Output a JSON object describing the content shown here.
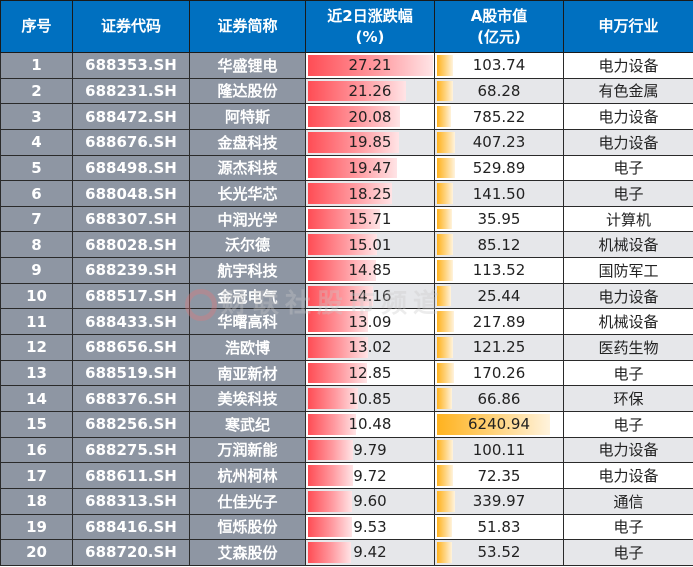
{
  "table": {
    "headers": {
      "rank": "序号",
      "code": "证券代码",
      "name": "证券简称",
      "change_line1": "近2日涨跌幅",
      "change_line2": "(%)",
      "mktcap_line1": "A股市值",
      "mktcap_line2": "(亿元)",
      "industry": "申万行业"
    },
    "colors": {
      "header_bg": "#0070c0",
      "left_cols_bg": "#8e96a3",
      "change_bar": "#ff4d55",
      "mktcap_bar": "#ffb21e"
    },
    "rows": [
      {
        "rank": "1",
        "code": "688353.SH",
        "name": "华盛锂电",
        "change": "27.21",
        "mktcap": "103.74",
        "industry": "电力设备"
      },
      {
        "rank": "2",
        "code": "688231.SH",
        "name": "隆达股份",
        "change": "21.26",
        "mktcap": "68.28",
        "industry": "有色金属"
      },
      {
        "rank": "3",
        "code": "688472.SH",
        "name": "阿特斯",
        "change": "20.08",
        "mktcap": "785.22",
        "industry": "电力设备"
      },
      {
        "rank": "4",
        "code": "688676.SH",
        "name": "金盘科技",
        "change": "19.85",
        "mktcap": "407.23",
        "industry": "电力设备"
      },
      {
        "rank": "5",
        "code": "688498.SH",
        "name": "源杰科技",
        "change": "19.47",
        "mktcap": "529.89",
        "industry": "电子"
      },
      {
        "rank": "6",
        "code": "688048.SH",
        "name": "长光华芯",
        "change": "18.25",
        "mktcap": "141.50",
        "industry": "电子"
      },
      {
        "rank": "7",
        "code": "688307.SH",
        "name": "中润光学",
        "change": "15.71",
        "mktcap": "35.95",
        "industry": "计算机"
      },
      {
        "rank": "8",
        "code": "688028.SH",
        "name": "沃尔德",
        "change": "15.01",
        "mktcap": "85.12",
        "industry": "机械设备"
      },
      {
        "rank": "9",
        "code": "688239.SH",
        "name": "航宇科技",
        "change": "14.85",
        "mktcap": "113.52",
        "industry": "国防军工"
      },
      {
        "rank": "10",
        "code": "688517.SH",
        "name": "金冠电气",
        "change": "14.16",
        "mktcap": "25.44",
        "industry": "电力设备"
      },
      {
        "rank": "11",
        "code": "688433.SH",
        "name": "华曙高科",
        "change": "13.09",
        "mktcap": "217.89",
        "industry": "机械设备"
      },
      {
        "rank": "12",
        "code": "688656.SH",
        "name": "浩欧博",
        "change": "13.02",
        "mktcap": "121.25",
        "industry": "医药生物"
      },
      {
        "rank": "13",
        "code": "688519.SH",
        "name": "南亚新材",
        "change": "12.85",
        "mktcap": "170.26",
        "industry": "电子"
      },
      {
        "rank": "14",
        "code": "688376.SH",
        "name": "美埃科技",
        "change": "10.85",
        "mktcap": "66.86",
        "industry": "环保"
      },
      {
        "rank": "15",
        "code": "688256.SH",
        "name": "寒武纪",
        "change": "10.48",
        "mktcap": "6240.94",
        "industry": "电子"
      },
      {
        "rank": "16",
        "code": "688275.SH",
        "name": "万润新能",
        "change": "9.79",
        "mktcap": "100.11",
        "industry": "电力设备"
      },
      {
        "rank": "17",
        "code": "688611.SH",
        "name": "杭州柯林",
        "change": "9.72",
        "mktcap": "72.35",
        "industry": "电力设备"
      },
      {
        "rank": "18",
        "code": "688313.SH",
        "name": "仕佳光子",
        "change": "9.60",
        "mktcap": "339.97",
        "industry": "通信"
      },
      {
        "rank": "19",
        "code": "688416.SH",
        "name": "恒烁股份",
        "change": "9.53",
        "mktcap": "51.83",
        "industry": "电子"
      },
      {
        "rank": "20",
        "code": "688720.SH",
        "name": "艾森股份",
        "change": "9.42",
        "mktcap": "53.52",
        "industry": "电子"
      }
    ]
  },
  "watermark": "财联社股市频道"
}
